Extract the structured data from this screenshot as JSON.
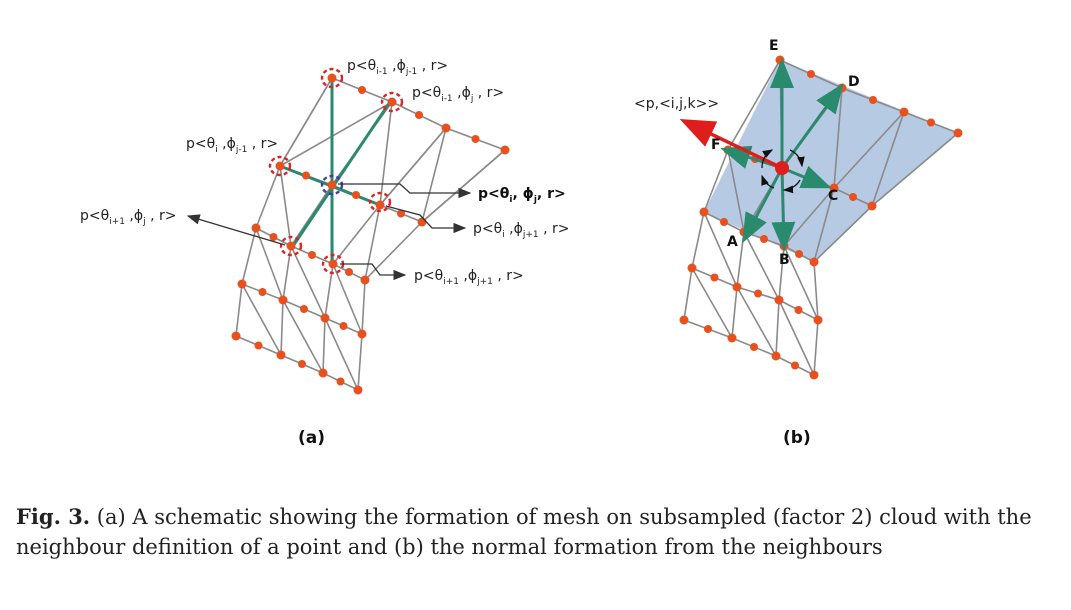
{
  "panel_a": {
    "label": "(a)",
    "points": {
      "p1": {
        "pre": "p<θ",
        "s1": "i-1",
        "mid": " ,ϕ",
        "s2": "j-1",
        "post": " , r>"
      },
      "p2": {
        "pre": "p<θ",
        "s1": "i-1",
        "mid": " ,ϕ",
        "s2": "j",
        "post": " , r>"
      },
      "p3": {
        "pre": "p<θ",
        "s1": "i",
        "mid": " ,ϕ",
        "s2": "j-1",
        "post": " , r>"
      },
      "p4": {
        "pre": "p<θ",
        "s1": "i",
        "mid": ", ϕ",
        "s2": "j",
        "post": ", r>"
      },
      "p5": {
        "pre": "p<θ",
        "s1": "i+1",
        "mid": " ,ϕ",
        "s2": "j",
        "post": " , r>"
      },
      "p6": {
        "pre": "p<θ",
        "s1": "i",
        "mid": " ,ϕ",
        "s2": "j+1",
        "post": " , r>"
      },
      "p7": {
        "pre": "p<θ",
        "s1": "i+1",
        "mid": " ,ϕ",
        "s2": "j+1",
        "post": " , r>"
      }
    }
  },
  "panel_b": {
    "label": "(b)",
    "normal_label": "<p,<i,j,k>>",
    "vertices": [
      "A",
      "B",
      "C",
      "D",
      "E",
      "F"
    ]
  },
  "caption": {
    "fig_num": "Fig. 3.",
    "text": " (a) A schematic showing the formation of mesh on subsampled (factor 2) cloud with the neighbour definition of a point and (b) the normal formation from the neighbours"
  },
  "colors": {
    "mesh": "#8a8a8a",
    "point": "#e8501e",
    "green": "#2a8a6e",
    "red_dash": "#d8242a",
    "plane": "#a9c1de",
    "normal": "#e01d1d"
  }
}
